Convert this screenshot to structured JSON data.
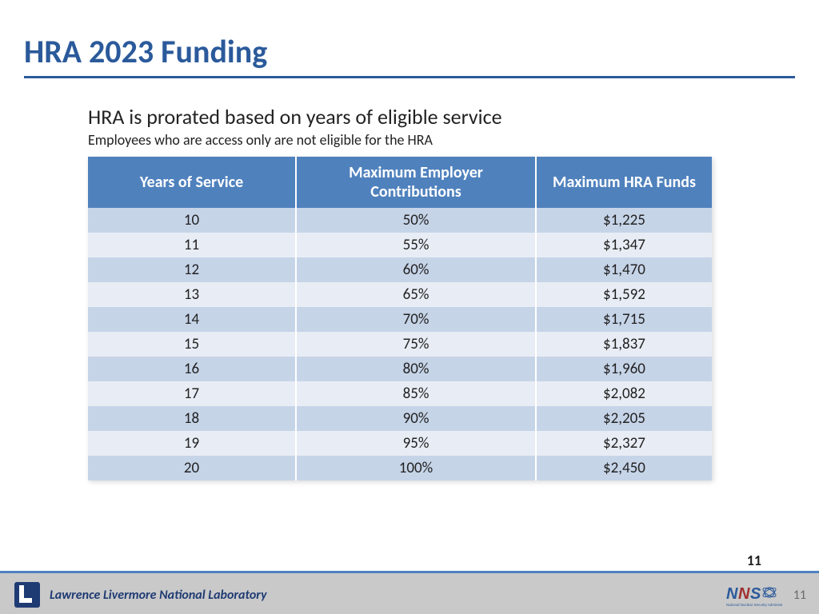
{
  "title": {
    "text": "HRA 2023 Funding",
    "color": "#2b5a9b",
    "rule_color": "#2b5a9b"
  },
  "subheading": "HRA is prorated based on years of eligible service",
  "subnote": "Employees who are access only are not eligible for the HRA",
  "table": {
    "header_bg": "#4f81bd",
    "header_fg": "#ffffff",
    "row_colors": [
      "#c6d4e8",
      "#e8edf5"
    ],
    "columns": [
      "Years of Service",
      "Maximum Employer Contributions",
      "Maximum HRA  Funds"
    ],
    "rows": [
      [
        "10",
        "50%",
        "$1,225"
      ],
      [
        "11",
        "55%",
        "$1,347"
      ],
      [
        "12",
        "60%",
        "$1,470"
      ],
      [
        "13",
        "65%",
        "$1,592"
      ],
      [
        "14",
        "70%",
        "$1,715"
      ],
      [
        "15",
        "75%",
        "$1,837"
      ],
      [
        "16",
        "80%",
        "$1,960"
      ],
      [
        "17",
        "85%",
        "$2,082"
      ],
      [
        "18",
        "90%",
        "$2,205"
      ],
      [
        "19",
        "95%",
        "$2,327"
      ],
      [
        "20",
        "100%",
        "$2,450"
      ]
    ]
  },
  "footer": {
    "rule_color": "#4f81bd",
    "bar_bg": "#c9c9c9",
    "lab_name": "Lawrence Livermore National Laboratory",
    "page_number": "11",
    "page_overlay": "11",
    "llnl_logo_blue": "#1f3b73",
    "nnsa_blue": "#2b5a9b",
    "nnsa_red": "#a03030"
  }
}
